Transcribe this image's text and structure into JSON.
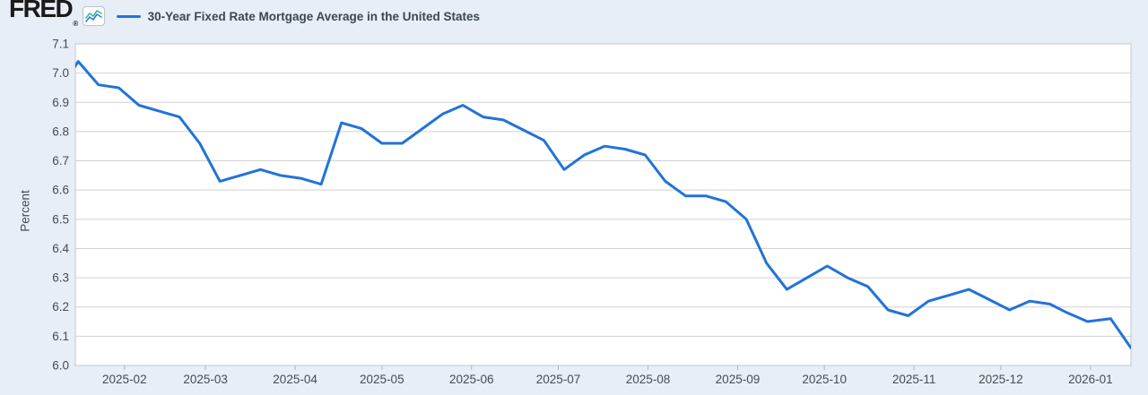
{
  "branding": {
    "logo_text": "FRED",
    "registered_mark": "®"
  },
  "colors": {
    "background": "#e7eef5",
    "plot_bg": "#ffffff",
    "grid": "#d0d0d0",
    "plot_border": "#bfc9d2",
    "tick_mark": "#aab4be",
    "tick_text": "#434d57",
    "title_text": "#3c4751",
    "line": "#2173d8",
    "spark_teal": "#39b3a4",
    "spark_blue": "#2a7de1"
  },
  "chart_data": {
    "type": "line",
    "title": "30-Year Fixed Rate Mortgage Average in the United States",
    "xlabel": "",
    "ylabel": "Percent",
    "ylim": [
      6.0,
      7.1
    ],
    "y_ticks": [
      7.1,
      7.0,
      6.9,
      6.8,
      6.7,
      6.6,
      6.5,
      6.4,
      6.3,
      6.2,
      6.1,
      6.0
    ],
    "x_range": [
      "2025-01-15",
      "2026-01-15"
    ],
    "x_ticks": [
      "2025-02",
      "2025-03",
      "2025-04",
      "2025-05",
      "2025-06",
      "2025-07",
      "2025-08",
      "2025-09",
      "2025-10",
      "2025-11",
      "2025-12",
      "2026-01"
    ],
    "grid": true,
    "legend_position": "top-left",
    "series": [
      {
        "name": "30-Year Fixed Rate Mortgage Average in the United States",
        "color": "#2173d8",
        "frequency": "weekly",
        "dates": [
          "2025-01-09",
          "2025-01-16",
          "2025-01-23",
          "2025-01-30",
          "2025-02-06",
          "2025-02-13",
          "2025-02-20",
          "2025-02-27",
          "2025-03-06",
          "2025-03-13",
          "2025-03-20",
          "2025-03-27",
          "2025-04-03",
          "2025-04-10",
          "2025-04-17",
          "2025-04-24",
          "2025-05-01",
          "2025-05-08",
          "2025-05-15",
          "2025-05-22",
          "2025-05-29",
          "2025-06-05",
          "2025-06-12",
          "2025-06-18",
          "2025-06-26",
          "2025-07-03",
          "2025-07-10",
          "2025-07-17",
          "2025-07-24",
          "2025-07-31",
          "2025-08-07",
          "2025-08-14",
          "2025-08-21",
          "2025-08-28",
          "2025-09-04",
          "2025-09-11",
          "2025-09-18",
          "2025-09-25",
          "2025-10-02",
          "2025-10-09",
          "2025-10-16",
          "2025-10-23",
          "2025-10-30",
          "2025-11-06",
          "2025-11-13",
          "2025-11-20",
          "2025-11-26",
          "2025-12-04",
          "2025-12-11",
          "2025-12-18",
          "2025-12-24",
          "2025-12-31",
          "2026-01-08",
          "2026-01-15"
        ],
        "values": [
          6.93,
          7.04,
          6.96,
          6.95,
          6.89,
          6.87,
          6.85,
          6.76,
          6.63,
          6.65,
          6.67,
          6.65,
          6.64,
          6.62,
          6.83,
          6.81,
          6.76,
          6.76,
          6.81,
          6.86,
          6.89,
          6.85,
          6.84,
          6.81,
          6.77,
          6.67,
          6.72,
          6.75,
          6.74,
          6.72,
          6.63,
          6.58,
          6.58,
          6.56,
          6.5,
          6.35,
          6.26,
          6.3,
          6.34,
          6.3,
          6.27,
          6.19,
          6.17,
          6.22,
          6.24,
          6.26,
          6.23,
          6.19,
          6.22,
          6.21,
          6.18,
          6.15,
          6.16,
          6.06
        ]
      }
    ]
  }
}
